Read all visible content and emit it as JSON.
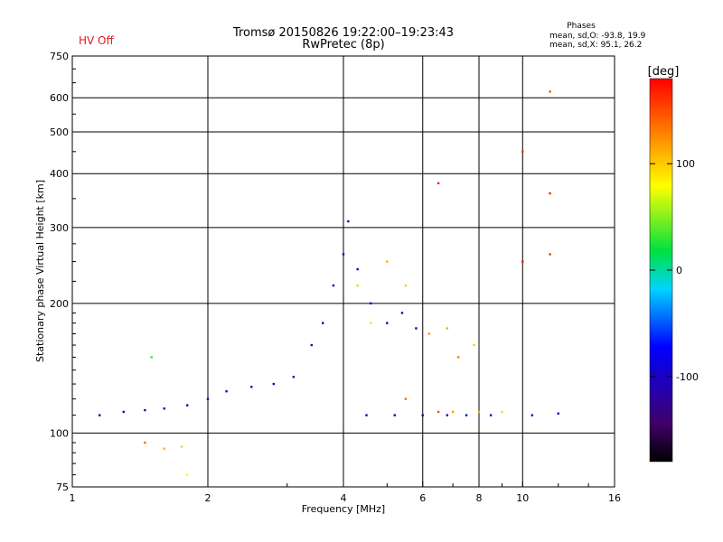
{
  "header": {
    "title_line1": "Tromsø 20150826 19:22:00–19:23:43",
    "title_line2": "RwPretec (8p)",
    "status": "HV Off",
    "status_color": "#e8141e",
    "phase_title": "Phases",
    "phase_line1": "mean, sd,O: -93.8, 19.9",
    "phase_line2": "mean, sd,X:  95.1, 26.2"
  },
  "chart_data": {
    "type": "scatter",
    "xlabel": "Frequency [MHz]",
    "ylabel": "Stationary phase Virtual Height [km]",
    "x_scale": "log",
    "y_scale": "log",
    "xlim": [
      1,
      16
    ],
    "ylim": [
      75,
      750
    ],
    "x_ticks": [
      1,
      2,
      4,
      6,
      8,
      10,
      16
    ],
    "x_tick_labels": [
      "1",
      "2",
      "4",
      "6",
      "8",
      "10",
      "16"
    ],
    "y_ticks": [
      75,
      100,
      200,
      300,
      400,
      500,
      600,
      750
    ],
    "y_tick_labels": [
      "75",
      "100",
      "200",
      "300",
      "400",
      "500",
      "600",
      "750"
    ],
    "grid": true,
    "colorbar": {
      "label": "[deg]",
      "range": [
        -180,
        180
      ],
      "ticks": [
        100,
        0,
        -100
      ],
      "tick_labels": [
        "100",
        "0",
        "-100"
      ]
    },
    "series": [
      {
        "points": [
          [
            1.15,
            110,
            -120
          ],
          [
            1.3,
            112,
            -110
          ],
          [
            1.45,
            113,
            -115
          ],
          [
            1.6,
            114,
            -105
          ],
          [
            1.8,
            116,
            -110
          ],
          [
            2.0,
            120,
            -100
          ],
          [
            2.2,
            125,
            -95
          ],
          [
            2.5,
            128,
            -100
          ],
          [
            2.8,
            130,
            -90
          ],
          [
            3.1,
            135,
            -100
          ],
          [
            3.4,
            160,
            -110
          ],
          [
            3.6,
            180,
            -120
          ],
          [
            3.8,
            220,
            -115
          ],
          [
            4.0,
            260,
            -125
          ],
          [
            4.1,
            310,
            -130
          ],
          [
            4.3,
            240,
            -110
          ],
          [
            4.6,
            200,
            -100
          ],
          [
            5.0,
            180,
            -95
          ],
          [
            5.4,
            190,
            -105
          ],
          [
            5.8,
            175,
            -100
          ],
          [
            4.5,
            110,
            -100
          ],
          [
            5.2,
            110,
            -90
          ],
          [
            6.0,
            110,
            -95
          ],
          [
            6.8,
            110,
            -85
          ],
          [
            7.5,
            110,
            -90
          ],
          [
            8.5,
            110,
            -80
          ],
          [
            10.5,
            110,
            -95
          ],
          [
            12.0,
            111,
            -100
          ]
        ]
      },
      {
        "points": [
          [
            4.3,
            220,
            60
          ],
          [
            4.6,
            180,
            90
          ],
          [
            5.0,
            250,
            110
          ],
          [
            5.5,
            220,
            100
          ],
          [
            6.2,
            170,
            120
          ],
          [
            6.8,
            175,
            110
          ],
          [
            7.2,
            150,
            130
          ],
          [
            7.8,
            160,
            100
          ],
          [
            5.5,
            120,
            140
          ],
          [
            6.5,
            112,
            150
          ],
          [
            7.0,
            112,
            120
          ],
          [
            8.0,
            112,
            110
          ],
          [
            9.0,
            112,
            95
          ],
          [
            6.5,
            380,
            175
          ],
          [
            10.0,
            450,
            160
          ],
          [
            11.5,
            360,
            165
          ],
          [
            11.5,
            620,
            150
          ],
          [
            10.0,
            250,
            170
          ],
          [
            11.5,
            260,
            160
          ],
          [
            1.8,
            80,
            80
          ],
          [
            1.45,
            95,
            140
          ],
          [
            1.6,
            92,
            110
          ],
          [
            1.75,
            93,
            60
          ],
          [
            1.5,
            150,
            30
          ]
        ]
      }
    ]
  }
}
